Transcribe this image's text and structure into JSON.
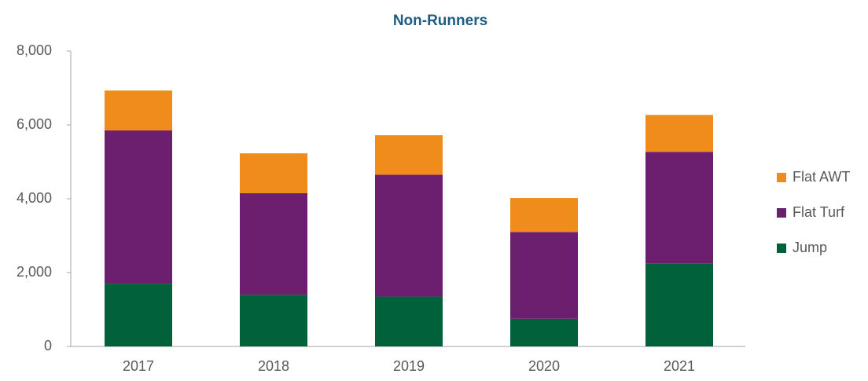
{
  "chart_data": {
    "type": "stacked_bar",
    "title": "Non-Runners",
    "categories": [
      "2017",
      "2018",
      "2019",
      "2020",
      "2021"
    ],
    "series": [
      {
        "name": "Jump",
        "color": "#00613a",
        "values": [
          1700,
          1400,
          1350,
          750,
          2250
        ]
      },
      {
        "name": "Flat Turf",
        "color": "#6c1f6e",
        "values": [
          4150,
          2750,
          3300,
          2350,
          3020
        ]
      },
      {
        "name": "Flat AWT",
        "color": "#ef8c1b",
        "values": [
          1080,
          1080,
          1070,
          920,
          1000
        ]
      }
    ],
    "ylim": [
      0,
      8000
    ],
    "yticks": [
      0,
      {
        "value": 2000,
        "label": "2,000"
      },
      {
        "value": 4000,
        "label": "4,000"
      },
      {
        "value": 6000,
        "label": "6,000"
      },
      {
        "value": 8000,
        "label": "8,000"
      }
    ],
    "grid": false,
    "legend": "right"
  }
}
